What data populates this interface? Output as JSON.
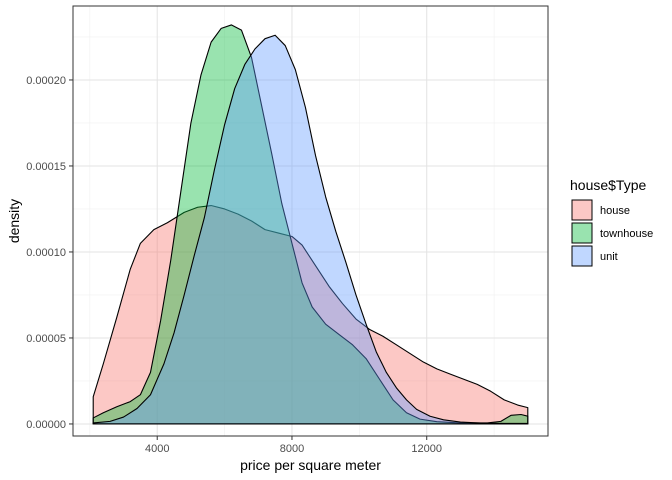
{
  "chart_data": {
    "type": "area",
    "xlabel": "price per square meter",
    "ylabel": "density",
    "xlim": [
      1500,
      15600
    ],
    "ylim": [
      -7e-06,
      0.000243
    ],
    "x_ticks": [
      4000,
      8000,
      12000
    ],
    "x_tick_labels": [
      "4000",
      "8000",
      "12000"
    ],
    "y_ticks": [
      0,
      5e-05,
      0.0001,
      0.00015,
      0.0002
    ],
    "y_tick_labels": [
      "0.00000",
      "0.00005",
      "0.00010",
      "0.00015",
      "0.00020"
    ],
    "grid": true,
    "legend": {
      "title": "house$Type",
      "position": "right"
    },
    "series": [
      {
        "name": "house",
        "color": "#F8766D",
        "points": [
          [
            2100,
            1.58e-05
          ],
          [
            2400,
            3.5e-05
          ],
          [
            2800,
            6.2e-05
          ],
          [
            3200,
            9e-05
          ],
          [
            3500,
            0.000105
          ],
          [
            3900,
            0.000113
          ],
          [
            4300,
            0.000117
          ],
          [
            4800,
            0.000123
          ],
          [
            5200,
            0.000126
          ],
          [
            5600,
            0.000127
          ],
          [
            6000,
            0.000125
          ],
          [
            6400,
            0.000122
          ],
          [
            6800,
            0.000118
          ],
          [
            7200,
            0.000113
          ],
          [
            7600,
            0.000111
          ],
          [
            8000,
            0.000109
          ],
          [
            8300,
            0.000104
          ],
          [
            8700,
            9.2e-05
          ],
          [
            9100,
            8e-05
          ],
          [
            9500,
            7e-05
          ],
          [
            9900,
            6.1e-05
          ],
          [
            10300,
            5.5e-05
          ],
          [
            10700,
            5.1e-05
          ],
          [
            11100,
            4.6e-05
          ],
          [
            11500,
            4.1e-05
          ],
          [
            11900,
            3.6e-05
          ],
          [
            12300,
            3.2e-05
          ],
          [
            12700,
            2.9e-05
          ],
          [
            13100,
            2.6e-05
          ],
          [
            13500,
            2.3e-05
          ],
          [
            13900,
            1.9e-05
          ],
          [
            14300,
            1.4e-05
          ],
          [
            14700,
            1.1e-05
          ],
          [
            15000,
            9.5e-06
          ]
        ]
      },
      {
        "name": "townhouse",
        "color": "#00BA38",
        "points": [
          [
            2100,
            3.5e-06
          ],
          [
            2400,
            6.5e-06
          ],
          [
            2800,
            1e-05
          ],
          [
            3200,
            1.3e-05
          ],
          [
            3500,
            1.7e-05
          ],
          [
            3800,
            3e-05
          ],
          [
            4100,
            6e-05
          ],
          [
            4400,
            9.5e-05
          ],
          [
            4700,
            0.000135
          ],
          [
            5000,
            0.000175
          ],
          [
            5300,
            0.000203
          ],
          [
            5600,
            0.000222
          ],
          [
            5900,
            0.00023
          ],
          [
            6200,
            0.000232
          ],
          [
            6500,
            0.000229
          ],
          [
            6800,
            0.000213
          ],
          [
            7100,
            0.000185
          ],
          [
            7400,
            0.000157
          ],
          [
            7700,
            0.000128
          ],
          [
            8000,
            0.000105
          ],
          [
            8300,
            8.2e-05
          ],
          [
            8600,
            6.8e-05
          ],
          [
            9000,
            5.8e-05
          ],
          [
            9400,
            5.2e-05
          ],
          [
            9800,
            4.6e-05
          ],
          [
            10200,
            3.8e-05
          ],
          [
            10600,
            2.6e-05
          ],
          [
            11000,
            1.4e-05
          ],
          [
            11400,
            6.5e-06
          ],
          [
            11800,
            2.8e-06
          ],
          [
            12300,
            1.3e-06
          ],
          [
            13000,
            6e-07
          ],
          [
            13800,
            6e-07
          ],
          [
            14200,
            1.5e-06
          ],
          [
            14500,
            5e-06
          ],
          [
            14800,
            5.5e-06
          ],
          [
            15000,
            4.5e-06
          ]
        ]
      },
      {
        "name": "unit",
        "color": "#619CFF",
        "points": [
          [
            2100,
            6e-07
          ],
          [
            2600,
            1.5e-06
          ],
          [
            3000,
            4e-06
          ],
          [
            3400,
            9e-06
          ],
          [
            3800,
            1.7e-05
          ],
          [
            4200,
            3.5e-05
          ],
          [
            4500,
            5.3e-05
          ],
          [
            4800,
            7.5e-05
          ],
          [
            5100,
            9.8e-05
          ],
          [
            5400,
            0.00012
          ],
          [
            5700,
            0.000148
          ],
          [
            6000,
            0.000174
          ],
          [
            6300,
            0.000195
          ],
          [
            6600,
            0.000209
          ],
          [
            6900,
            0.000218
          ],
          [
            7200,
            0.000224
          ],
          [
            7500,
            0.000226
          ],
          [
            7800,
            0.00022
          ],
          [
            8100,
            0.000206
          ],
          [
            8400,
            0.000184
          ],
          [
            8700,
            0.000156
          ],
          [
            9000,
            0.000132
          ],
          [
            9300,
            0.000112
          ],
          [
            9600,
            9.4e-05
          ],
          [
            9900,
            7.5e-05
          ],
          [
            10200,
            5.8e-05
          ],
          [
            10500,
            4.2e-05
          ],
          [
            10800,
            3e-05
          ],
          [
            11100,
            2.1e-05
          ],
          [
            11400,
            1.4e-05
          ],
          [
            11700,
            8.5e-06
          ],
          [
            12100,
            4.5e-06
          ],
          [
            12500,
            2.4e-06
          ],
          [
            13000,
            1.1e-06
          ],
          [
            13600,
            5e-07
          ],
          [
            14300,
            3e-07
          ],
          [
            15000,
            3e-07
          ]
        ]
      }
    ]
  }
}
